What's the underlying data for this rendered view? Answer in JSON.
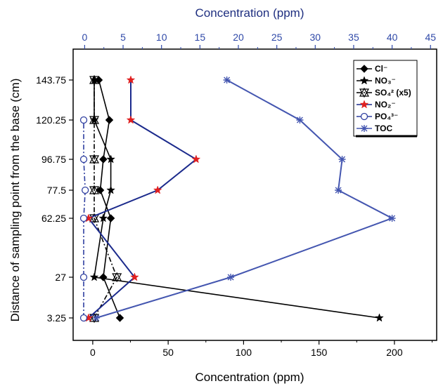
{
  "chart_data": {
    "type": "line",
    "xlabel_bottom": "Concentration (ppm)",
    "xlabel_top": "Concentration (ppm)",
    "ylabel": "Distance of sampling point from the base (cm)",
    "x_bottom_ticks": [
      "0",
      "50",
      "100",
      "150",
      "200"
    ],
    "x_top_ticks": [
      "0",
      "5",
      "10",
      "15",
      "20",
      "25",
      "30",
      "35",
      "40",
      "45"
    ],
    "xlim_bottom": [
      -13,
      228
    ],
    "xlim_top": [
      -1.5,
      45.8
    ],
    "y_tick_labels": [
      "3.25",
      "27",
      "62.25",
      "77.5",
      "96.75",
      "120.25",
      "143.75"
    ],
    "y_positions": [
      3.25,
      27,
      62.25,
      77.5,
      96.75,
      120.25,
      143.75
    ],
    "series": [
      {
        "name": "Cl",
        "legend_label": "Cl⁻",
        "axis": "bottom",
        "color": "#000000",
        "marker": "diamond",
        "dash": "solid",
        "x": [
          18,
          7,
          12,
          5,
          7,
          11,
          4
        ],
        "y": [
          3.25,
          27,
          62.25,
          77.5,
          96.75,
          120.25,
          143.75
        ]
      },
      {
        "name": "NO3",
        "legend_label": "NO₃⁻",
        "axis": "bottom",
        "color": "#000000",
        "marker": "star",
        "dash": "solid",
        "x": [
          1,
          1,
          12,
          12,
          7,
          1,
          190
        ],
        "y": [
          143.75,
          120.25,
          96.75,
          77.5,
          62.25,
          27,
          3.25
        ]
      },
      {
        "name": "SO4",
        "legend_label": "SO₄² (x5)",
        "axis": "bottom",
        "color": "#000000",
        "marker": "cross-triangle",
        "dash": "dashdot",
        "x": [
          1,
          16,
          1,
          1,
          1,
          1,
          1
        ],
        "y": [
          3.25,
          27,
          62.25,
          77.5,
          96.75,
          120.25,
          143.75
        ]
      },
      {
        "name": "NO2",
        "legend_label": "NO₂⁻",
        "axis": "top",
        "color": "#1b2a8c",
        "marker": "star",
        "markerColor": "#e02020",
        "dash": "solid",
        "x": [
          0.5,
          6.5,
          0.5,
          9.5,
          14.5,
          6,
          6
        ],
        "y": [
          3.25,
          27,
          62.25,
          77.5,
          96.75,
          120.25,
          143.75
        ]
      },
      {
        "name": "PO4",
        "legend_label": "PO₄³⁻",
        "axis": "bottom",
        "color": "#2f3fa0",
        "marker": "circle",
        "dash": "dashdot",
        "x": [
          -6,
          -6,
          -6,
          -5,
          -6,
          -6
        ],
        "y": [
          3.25,
          27,
          62.25,
          77.5,
          96.75,
          120.25
        ]
      },
      {
        "name": "TOC",
        "legend_label": "TOC",
        "axis": "top",
        "color": "#4456b0",
        "marker": "asterisk",
        "dash": "solid",
        "x": [
          1.5,
          19,
          40,
          33,
          33.5,
          28,
          18.5
        ],
        "y": [
          3.25,
          27,
          62.25,
          77.5,
          96.75,
          120.25,
          143.75
        ]
      }
    ],
    "legend_position": "top-right"
  }
}
